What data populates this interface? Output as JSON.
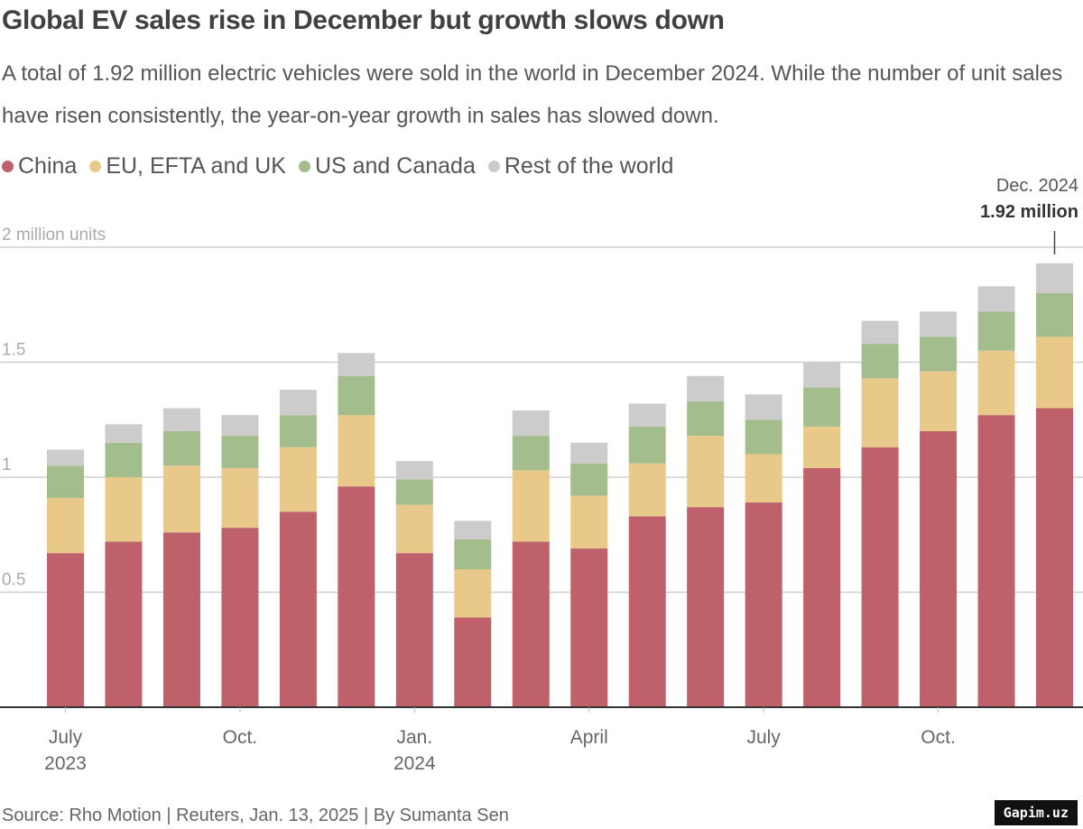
{
  "chart_data": {
    "type": "bar",
    "stacked": true,
    "title": "Global EV sales rise in December but growth slows down",
    "subtitle": "A total of 1.92 million electric vehicles were sold in the world in December 2024. While the number of unit sales have risen consistently, the year-on-year growth in sales has slowed down.",
    "ylabel": "2 million units",
    "ylim": [
      0,
      2
    ],
    "yticks": [
      {
        "value": 0.5,
        "label": "0.5"
      },
      {
        "value": 1,
        "label": "1"
      },
      {
        "value": 1.5,
        "label": "1.5"
      },
      {
        "value": 2,
        "label": "2 million units"
      }
    ],
    "grid": true,
    "legend_position": "top-left",
    "categories": [
      "Jul 2023",
      "Aug 2023",
      "Sep 2023",
      "Oct 2023",
      "Nov 2023",
      "Dec 2023",
      "Jan 2024",
      "Feb 2024",
      "Mar 2024",
      "Apr 2024",
      "May 2024",
      "Jun 2024",
      "Jul 2024",
      "Aug 2024",
      "Sep 2024",
      "Oct 2024",
      "Nov 2024",
      "Dec 2024"
    ],
    "xticks": [
      {
        "index": 0,
        "label": "July",
        "sub": "2023"
      },
      {
        "index": 3,
        "label": "Oct.",
        "sub": ""
      },
      {
        "index": 6,
        "label": "Jan.",
        "sub": "2024"
      },
      {
        "index": 9,
        "label": "April",
        "sub": ""
      },
      {
        "index": 12,
        "label": "July",
        "sub": ""
      },
      {
        "index": 15,
        "label": "Oct.",
        "sub": ""
      }
    ],
    "series": [
      {
        "name": "China",
        "color": "#be616a",
        "values": [
          0.67,
          0.72,
          0.76,
          0.78,
          0.85,
          0.96,
          0.67,
          0.39,
          0.72,
          0.69,
          0.83,
          0.87,
          0.89,
          1.04,
          1.13,
          1.2,
          1.27,
          1.3
        ]
      },
      {
        "name": "EU, EFTA and UK",
        "color": "#e9c98a",
        "values": [
          0.24,
          0.28,
          0.29,
          0.26,
          0.28,
          0.31,
          0.21,
          0.21,
          0.31,
          0.23,
          0.23,
          0.31,
          0.21,
          0.18,
          0.3,
          0.26,
          0.28,
          0.31
        ]
      },
      {
        "name": "US and Canada",
        "color": "#a3bd8c",
        "values": [
          0.14,
          0.15,
          0.15,
          0.14,
          0.14,
          0.17,
          0.11,
          0.13,
          0.15,
          0.14,
          0.16,
          0.15,
          0.15,
          0.17,
          0.15,
          0.15,
          0.17,
          0.19
        ]
      },
      {
        "name": "Rest of the world",
        "color": "#cccccc",
        "values": [
          0.07,
          0.08,
          0.1,
          0.09,
          0.11,
          0.1,
          0.08,
          0.08,
          0.11,
          0.09,
          0.1,
          0.11,
          0.11,
          0.11,
          0.1,
          0.11,
          0.11,
          0.13
        ]
      }
    ],
    "annotation": {
      "index": 17,
      "label": "Dec. 2024",
      "value_label": "1.92 million"
    }
  },
  "source": "Source: Rho Motion | Reuters, Jan. 13, 2025 | By Sumanta Sen",
  "watermark": "Gapim.uz"
}
